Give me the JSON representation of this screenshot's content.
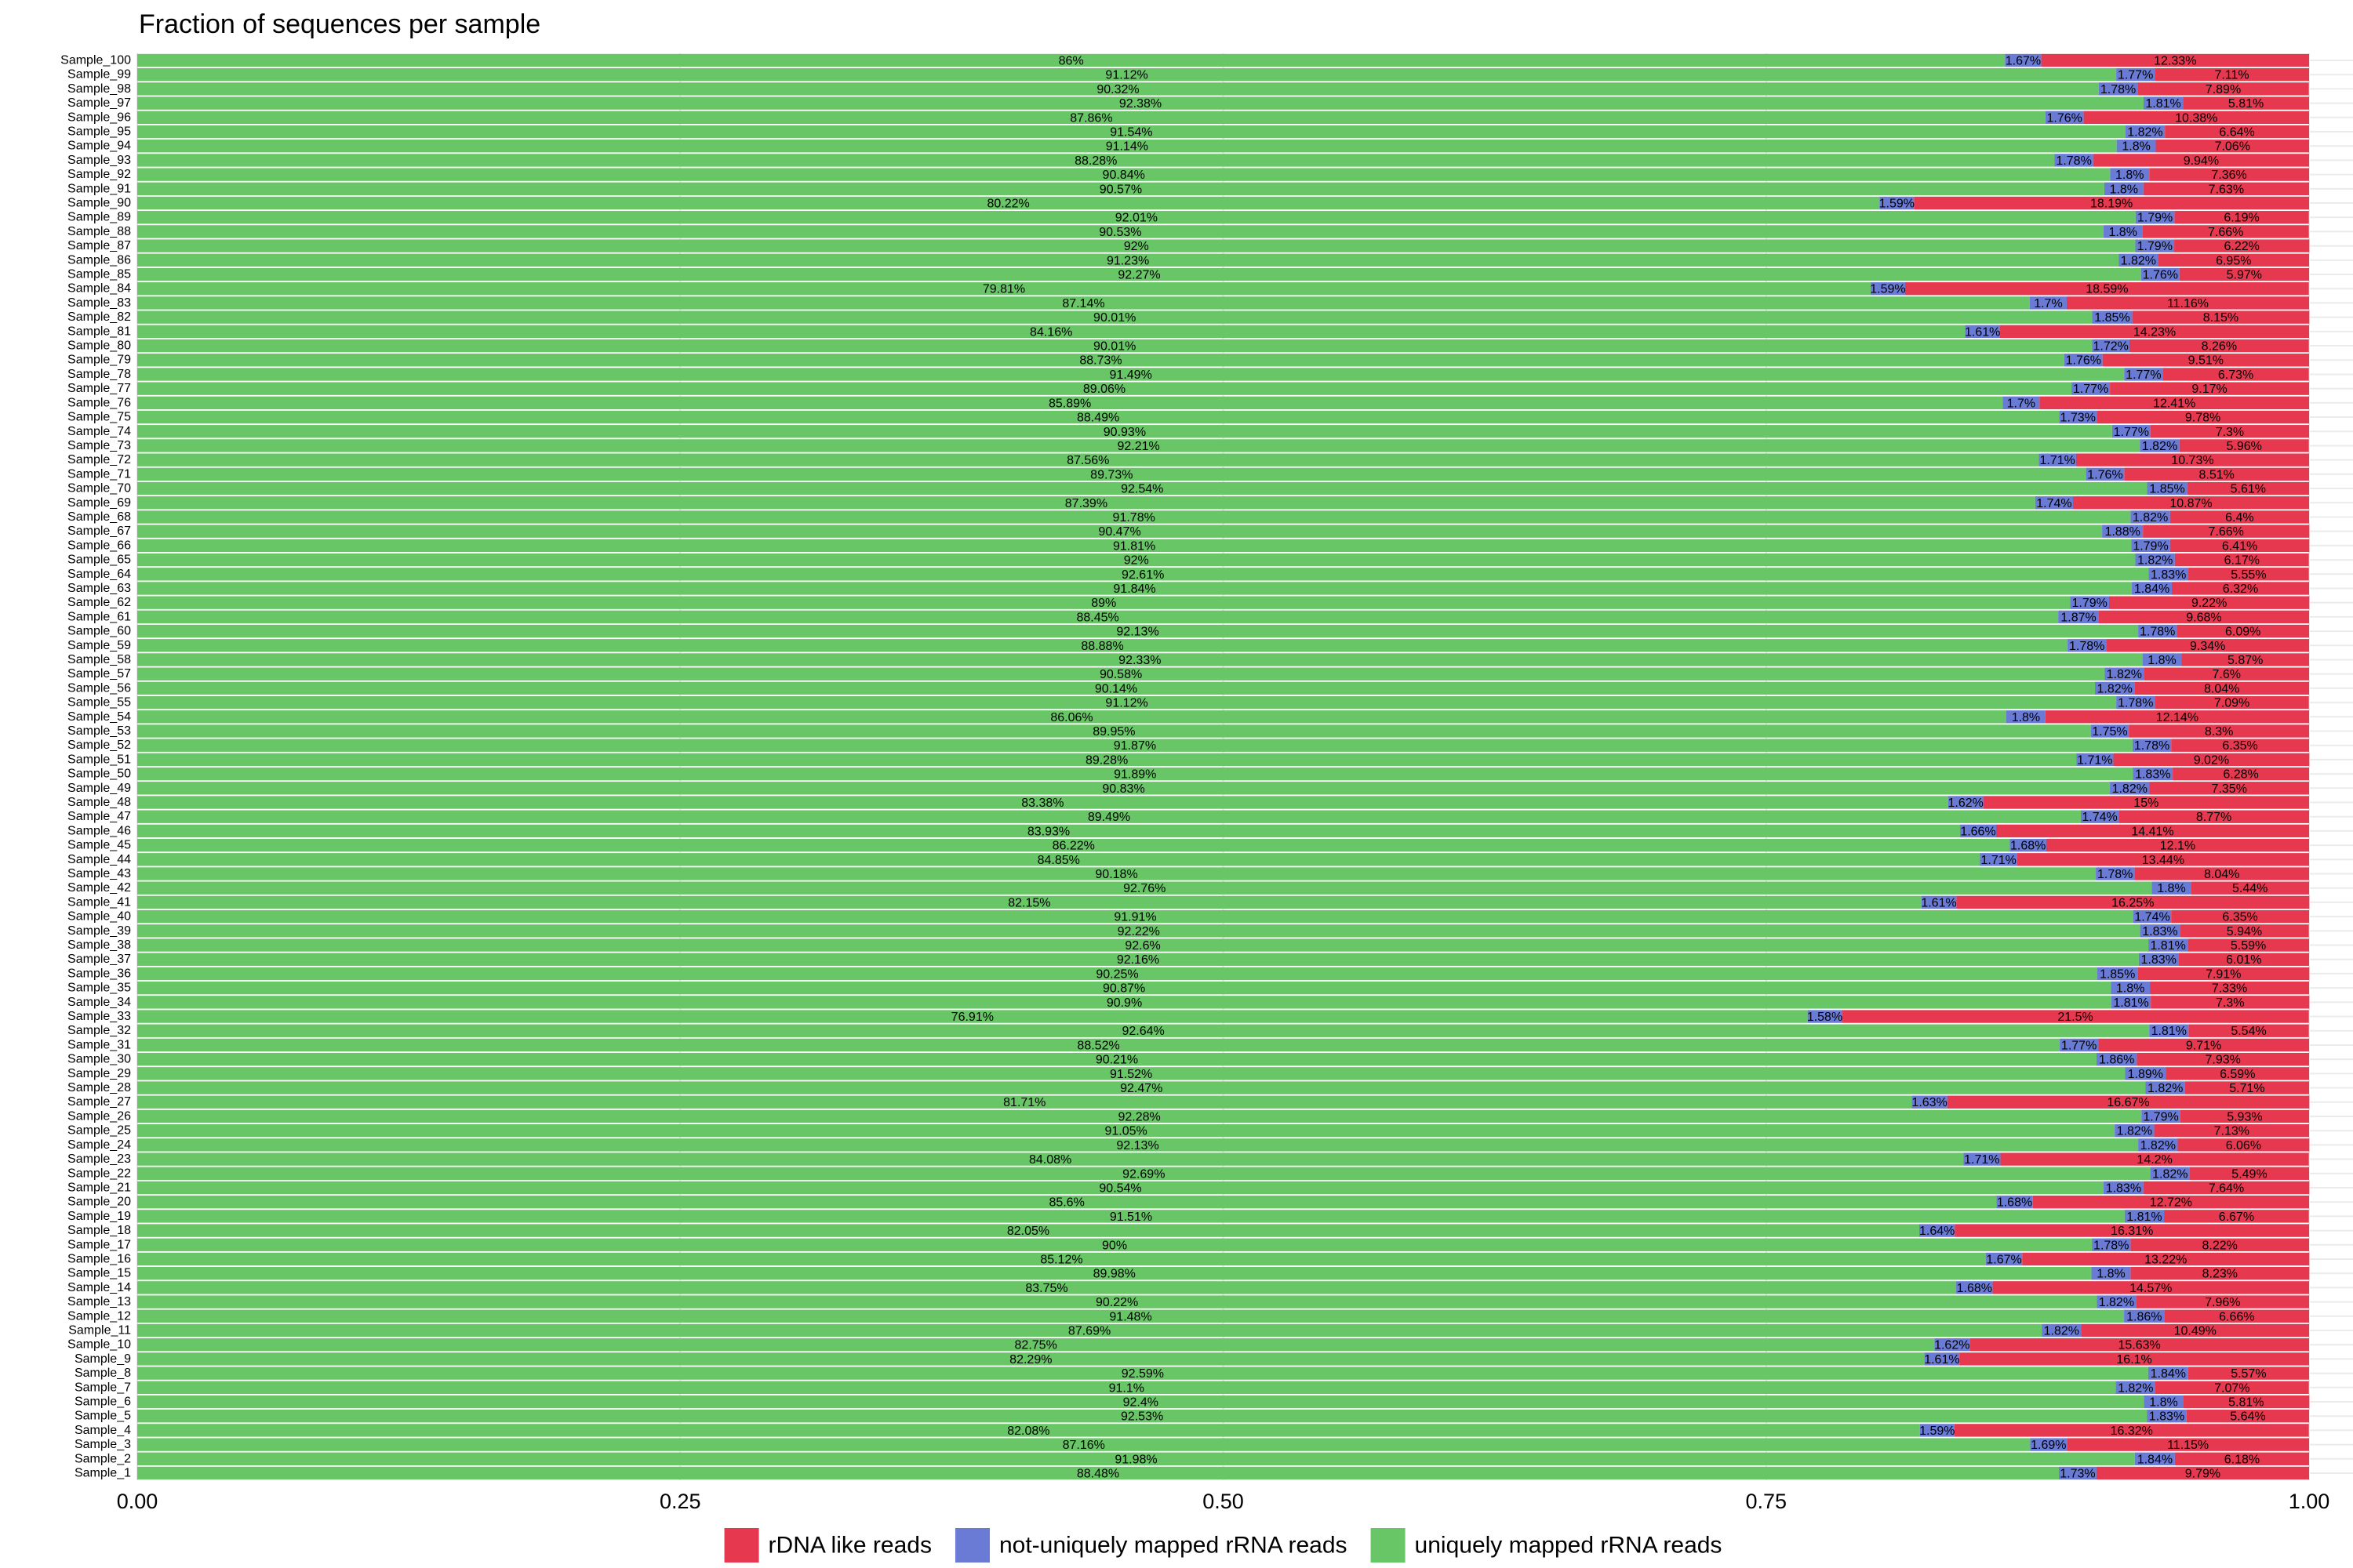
{
  "chart_data": {
    "type": "bar",
    "orientation": "horizontal",
    "stacked": true,
    "grid": true,
    "legend": "bottom",
    "title": "Fraction of sequences per sample",
    "categories": [
      "Sample_1",
      "Sample_2",
      "Sample_3",
      "Sample_4",
      "Sample_5",
      "Sample_6",
      "Sample_7",
      "Sample_8",
      "Sample_9",
      "Sample_10",
      "Sample_11",
      "Sample_12",
      "Sample_13",
      "Sample_14",
      "Sample_15",
      "Sample_16",
      "Sample_17",
      "Sample_18",
      "Sample_19",
      "Sample_20",
      "Sample_21",
      "Sample_22",
      "Sample_23",
      "Sample_24",
      "Sample_25",
      "Sample_26",
      "Sample_27",
      "Sample_28",
      "Sample_29",
      "Sample_30",
      "Sample_31",
      "Sample_32",
      "Sample_33",
      "Sample_34",
      "Sample_35",
      "Sample_36",
      "Sample_37",
      "Sample_38",
      "Sample_39",
      "Sample_40",
      "Sample_41",
      "Sample_42",
      "Sample_43",
      "Sample_44",
      "Sample_45",
      "Sample_46",
      "Sample_47",
      "Sample_48",
      "Sample_49",
      "Sample_50",
      "Sample_51",
      "Sample_52",
      "Sample_53",
      "Sample_54",
      "Sample_55",
      "Sample_56",
      "Sample_57",
      "Sample_58",
      "Sample_59",
      "Sample_60",
      "Sample_61",
      "Sample_62",
      "Sample_63",
      "Sample_64",
      "Sample_65",
      "Sample_66",
      "Sample_67",
      "Sample_68",
      "Sample_69",
      "Sample_70",
      "Sample_71",
      "Sample_72",
      "Sample_73",
      "Sample_74",
      "Sample_75",
      "Sample_76",
      "Sample_77",
      "Sample_78",
      "Sample_79",
      "Sample_80",
      "Sample_81",
      "Sample_82",
      "Sample_83",
      "Sample_84",
      "Sample_85",
      "Sample_86",
      "Sample_87",
      "Sample_88",
      "Sample_89",
      "Sample_90",
      "Sample_91",
      "Sample_92",
      "Sample_93",
      "Sample_94",
      "Sample_95",
      "Sample_96",
      "Sample_97",
      "Sample_98",
      "Sample_99",
      "Sample_100"
    ],
    "xlim": [
      0,
      1
    ],
    "xticks": [
      {
        "value": 0,
        "label": "0.00"
      },
      0.25,
      {
        "value": 0.5,
        "label": "0.50"
      },
      0.75,
      {
        "value": 1,
        "label": "1.00"
      }
    ],
    "series": [
      {
        "name": "rDNA like reads",
        "color": "#e63950",
        "values": [
          0.0979,
          0.0618,
          0.1115,
          0.1632,
          0.0564,
          0.0581,
          0.0707,
          0.0557,
          0.161,
          0.1563,
          0.1049,
          0.0666,
          0.0796,
          0.1457,
          0.0823,
          0.1322,
          0.0822,
          0.1631,
          0.0667,
          0.1272,
          0.0764,
          0.0549,
          0.142,
          0.0606,
          0.0713,
          0.0593,
          0.1667,
          0.0571,
          0.0659,
          0.0793,
          0.0971,
          0.0554,
          0.215,
          0.073,
          0.0733,
          0.0791,
          0.0601,
          0.0559,
          0.0594,
          0.0635,
          0.1625,
          0.0544,
          0.0804,
          0.1344,
          0.121,
          0.1441,
          0.0877,
          0.15,
          0.0735,
          0.0628,
          0.0902,
          0.0635,
          0.083,
          0.1214,
          0.0709,
          0.0804,
          0.076,
          0.0587,
          0.0934,
          0.0609,
          0.0968,
          0.0922,
          0.0632,
          0.0555,
          0.0617,
          0.0641,
          0.0766,
          0.064,
          0.1087,
          0.0561,
          0.0851,
          0.1073,
          0.0596,
          0.073,
          0.0978,
          0.1241,
          0.0917,
          0.0673,
          0.0951,
          0.0826,
          0.1423,
          0.0815,
          0.1116,
          0.1859,
          0.0597,
          0.0695,
          0.0622,
          0.0766,
          0.0619,
          0.1819,
          0.0763,
          0.0736,
          0.0994,
          0.0706,
          0.0664,
          0.1038,
          0.0581,
          0.0789,
          0.0711,
          0.1233
        ],
        "value_labels": [
          "9.79%",
          "6.18%",
          "11.15%",
          "16.32%",
          "5.64%",
          "5.81%",
          "7.07%",
          "5.57%",
          "16.1%",
          "15.63%",
          "10.49%",
          "6.66%",
          "7.96%",
          "14.57%",
          "8.23%",
          "13.22%",
          "8.22%",
          "16.31%",
          "6.67%",
          "12.72%",
          "7.64%",
          "5.49%",
          "14.2%",
          "6.06%",
          "7.13%",
          "5.93%",
          "16.67%",
          "5.71%",
          "6.59%",
          "7.93%",
          "9.71%",
          "5.54%",
          "21.5%",
          "7.3%",
          "7.33%",
          "7.91%",
          "6.01%",
          "5.59%",
          "5.94%",
          "6.35%",
          "16.25%",
          "5.44%",
          "8.04%",
          "13.44%",
          "12.1%",
          "14.41%",
          "8.77%",
          "15%",
          "7.35%",
          "6.28%",
          "9.02%",
          "6.35%",
          "8.3%",
          "12.14%",
          "7.09%",
          "8.04%",
          "7.6%",
          "5.87%",
          "9.34%",
          "6.09%",
          "9.68%",
          "9.22%",
          "6.32%",
          "5.55%",
          "6.17%",
          "6.41%",
          "7.66%",
          "6.4%",
          "10.87%",
          "5.61%",
          "8.51%",
          "10.73%",
          "5.96%",
          "7.3%",
          "9.78%",
          "12.41%",
          "9.17%",
          "6.73%",
          "9.51%",
          "8.26%",
          "14.23%",
          "8.15%",
          "11.16%",
          "18.59%",
          "5.97%",
          "6.95%",
          "6.22%",
          "7.66%",
          "6.19%",
          "18.19%",
          "7.63%",
          "7.36%",
          "9.94%",
          "7.06%",
          "6.64%",
          "10.38%",
          "5.81%",
          "7.89%",
          "7.11%",
          "12.33%"
        ]
      },
      {
        "name": "not-uniquely mapped rRNA reads",
        "color": "#6a7bd6",
        "values": [
          0.0173,
          0.0184,
          0.0169,
          0.0159,
          0.0183,
          0.018,
          0.0182,
          0.0184,
          0.0161,
          0.0162,
          0.0182,
          0.0186,
          0.0182,
          0.0168,
          0.018,
          0.0167,
          0.0178,
          0.0164,
          0.0181,
          0.0168,
          0.0183,
          0.0182,
          0.0171,
          0.0182,
          0.0182,
          0.0179,
          0.0163,
          0.0182,
          0.0189,
          0.0186,
          0.0177,
          0.0181,
          0.0158,
          0.0181,
          0.018,
          0.0185,
          0.0183,
          0.0181,
          0.0183,
          0.0174,
          0.0161,
          0.018,
          0.0178,
          0.0171,
          0.0168,
          0.0166,
          0.0174,
          0.0162,
          0.0182,
          0.0183,
          0.0171,
          0.0178,
          0.0175,
          0.018,
          0.0178,
          0.0182,
          0.0182,
          0.018,
          0.0178,
          0.0178,
          0.0187,
          0.0179,
          0.0184,
          0.0183,
          0.0182,
          0.0179,
          0.0188,
          0.0182,
          0.0174,
          0.0185,
          0.0176,
          0.0171,
          0.0182,
          0.0177,
          0.0173,
          0.017,
          0.0177,
          0.0177,
          0.0176,
          0.0172,
          0.0161,
          0.0185,
          0.017,
          0.0159,
          0.0176,
          0.0182,
          0.0179,
          0.018,
          0.0179,
          0.0159,
          0.018,
          0.018,
          0.0178,
          0.018,
          0.0182,
          0.0176,
          0.0181,
          0.0178,
          0.0177,
          0.0167
        ],
        "value_labels": [
          "1.73%",
          "1.84%",
          "1.69%",
          "1.59%",
          "1.83%",
          "1.8%",
          "1.82%",
          "1.84%",
          "1.61%",
          "1.62%",
          "1.82%",
          "1.86%",
          "1.82%",
          "1.68%",
          "1.8%",
          "1.67%",
          "1.78%",
          "1.64%",
          "1.81%",
          "1.68%",
          "1.83%",
          "1.82%",
          "1.71%",
          "1.82%",
          "1.82%",
          "1.79%",
          "1.63%",
          "1.82%",
          "1.89%",
          "1.86%",
          "1.77%",
          "1.81%",
          "1.58%",
          "1.81%",
          "1.8%",
          "1.85%",
          "1.83%",
          "1.81%",
          "1.83%",
          "1.74%",
          "1.61%",
          "1.8%",
          "1.78%",
          "1.71%",
          "1.68%",
          "1.66%",
          "1.74%",
          "1.62%",
          "1.82%",
          "1.83%",
          "1.71%",
          "1.78%",
          "1.75%",
          "1.8%",
          "1.78%",
          "1.82%",
          "1.82%",
          "1.8%",
          "1.78%",
          "1.78%",
          "1.87%",
          "1.79%",
          "1.84%",
          "1.83%",
          "1.82%",
          "1.79%",
          "1.88%",
          "1.82%",
          "1.74%",
          "1.85%",
          "1.76%",
          "1.71%",
          "1.82%",
          "1.77%",
          "1.73%",
          "1.7%",
          "1.77%",
          "1.77%",
          "1.76%",
          "1.72%",
          "1.61%",
          "1.85%",
          "1.7%",
          "1.59%",
          "1.76%",
          "1.82%",
          "1.79%",
          "1.8%",
          "1.79%",
          "1.59%",
          "1.8%",
          "1.8%",
          "1.78%",
          "1.8%",
          "1.82%",
          "1.76%",
          "1.81%",
          "1.78%",
          "1.77%",
          "1.67%"
        ]
      },
      {
        "name": "uniquely mapped rRNA reads",
        "color": "#68c666",
        "values": [
          0.8848,
          0.9198,
          0.8716,
          0.8208,
          0.9253,
          0.924,
          0.911,
          0.9259,
          0.8229,
          0.8275,
          0.8769,
          0.9148,
          0.9022,
          0.8375,
          0.8998,
          0.8512,
          0.9,
          0.8205,
          0.9151,
          0.856,
          0.9054,
          0.9269,
          0.8408,
          0.9213,
          0.9105,
          0.9228,
          0.8171,
          0.9247,
          0.9152,
          0.9021,
          0.8852,
          0.9264,
          0.7691,
          0.909,
          0.9087,
          0.9025,
          0.9216,
          0.926,
          0.9222,
          0.9191,
          0.8215,
          0.9276,
          0.9018,
          0.8485,
          0.8622,
          0.8393,
          0.8949,
          0.8338,
          0.9083,
          0.9189,
          0.8928,
          0.9187,
          0.8995,
          0.8606,
          0.9112,
          0.9014,
          0.9058,
          0.9233,
          0.8888,
          0.9213,
          0.8845,
          0.89,
          0.9184,
          0.9261,
          0.92,
          0.9181,
          0.9047,
          0.9178,
          0.8739,
          0.9254,
          0.8973,
          0.8756,
          0.9221,
          0.9093,
          0.8849,
          0.8589,
          0.8906,
          0.9149,
          0.8873,
          0.9001,
          0.8416,
          0.9001,
          0.8714,
          0.7981,
          0.9227,
          0.9123,
          0.92,
          0.9053,
          0.9201,
          0.8022,
          0.9057,
          0.9084,
          0.8828,
          0.9114,
          0.9154,
          0.8786,
          0.9238,
          0.9032,
          0.9112,
          0.86
        ],
        "value_labels": [
          "88.48%",
          "91.98%",
          "87.16%",
          "82.08%",
          "92.53%",
          "92.4%",
          "91.1%",
          "92.59%",
          "82.29%",
          "82.75%",
          "87.69%",
          "91.48%",
          "90.22%",
          "83.75%",
          "89.98%",
          "85.12%",
          "90%",
          "82.05%",
          "91.51%",
          "85.6%",
          "90.54%",
          "92.69%",
          "84.08%",
          "92.13%",
          "91.05%",
          "92.28%",
          "81.71%",
          "92.47%",
          "91.52%",
          "90.21%",
          "88.52%",
          "92.64%",
          "76.91%",
          "90.9%",
          "90.87%",
          "90.25%",
          "92.16%",
          "92.6%",
          "92.22%",
          "91.91%",
          "82.15%",
          "92.76%",
          "90.18%",
          "84.85%",
          "86.22%",
          "83.93%",
          "89.49%",
          "83.38%",
          "90.83%",
          "91.89%",
          "89.28%",
          "91.87%",
          "89.95%",
          "86.06%",
          "91.12%",
          "90.14%",
          "90.58%",
          "92.33%",
          "88.88%",
          "92.13%",
          "88.45%",
          "89%",
          "91.84%",
          "92.61%",
          "92%",
          "91.81%",
          "90.47%",
          "91.78%",
          "87.39%",
          "92.54%",
          "89.73%",
          "87.56%",
          "92.21%",
          "90.93%",
          "88.49%",
          "85.89%",
          "89.06%",
          "91.49%",
          "88.73%",
          "90.01%",
          "84.16%",
          "90.01%",
          "87.14%",
          "79.81%",
          "92.27%",
          "91.23%",
          "92%",
          "90.53%",
          "92.01%",
          "80.22%",
          "90.57%",
          "90.84%",
          "88.28%",
          "91.14%",
          "91.54%",
          "87.86%",
          "92.38%",
          "90.32%",
          "91.12%",
          "86%"
        ]
      }
    ]
  }
}
